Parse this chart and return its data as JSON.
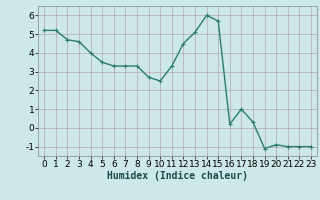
{
  "x": [
    0,
    1,
    2,
    3,
    4,
    5,
    6,
    7,
    8,
    9,
    10,
    11,
    12,
    13,
    14,
    15,
    16,
    17,
    18,
    19,
    20,
    21,
    22,
    23
  ],
  "y": [
    5.2,
    5.2,
    4.7,
    4.6,
    4.0,
    3.5,
    3.3,
    3.3,
    3.3,
    2.7,
    2.5,
    3.3,
    4.5,
    5.1,
    6.0,
    5.7,
    0.2,
    1.0,
    0.3,
    -1.1,
    -0.9,
    -1.0,
    -1.0,
    -1.0
  ],
  "xlabel": "Humidex (Indice chaleur)",
  "xlim": [
    -0.5,
    23.5
  ],
  "ylim": [
    -1.5,
    6.5
  ],
  "yticks": [
    -1,
    0,
    1,
    2,
    3,
    4,
    5,
    6
  ],
  "xticks": [
    0,
    1,
    2,
    3,
    4,
    5,
    6,
    7,
    8,
    9,
    10,
    11,
    12,
    13,
    14,
    15,
    16,
    17,
    18,
    19,
    20,
    21,
    22,
    23
  ],
  "line_color": "#2d7d6e",
  "marker": "+",
  "marker_size": 3,
  "background_color": "#cce8e8",
  "grid_color": "#b8a8a8",
  "xlabel_fontsize": 7,
  "tick_fontsize": 6.5,
  "linewidth": 1.0
}
